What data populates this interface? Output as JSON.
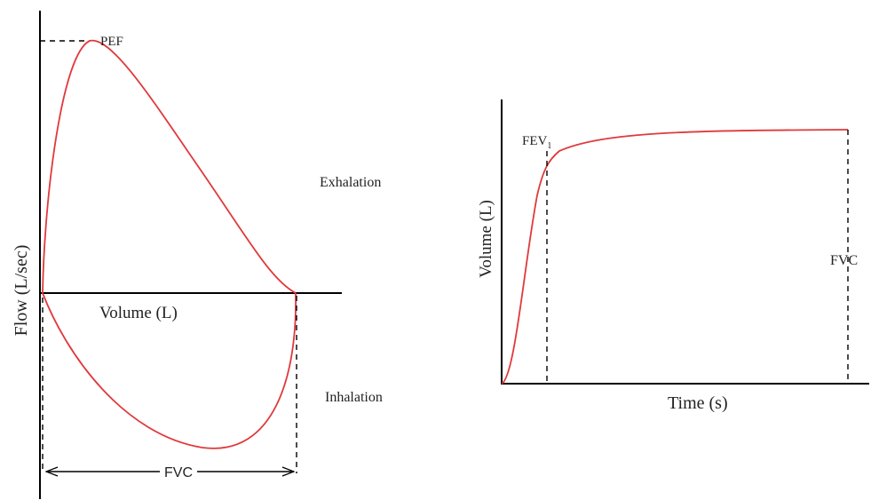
{
  "flow_volume": {
    "y_axis_label": "Flow (L/sec)",
    "x_axis_label": "Volume (L)",
    "peak_label": "PEF",
    "exhalation_label": "Exhalation",
    "inhalation_label": "Inhalation",
    "fvc_label": "FVC"
  },
  "volume_time": {
    "y_axis_label": "Volume (L)",
    "x_axis_label": "Time (s)",
    "fev_label": "FEV",
    "fev_subscript": "1",
    "fvc_label": "FVC"
  },
  "colors": {
    "curve": "#e0393b",
    "axis": "#000000",
    "text": "#222222"
  }
}
